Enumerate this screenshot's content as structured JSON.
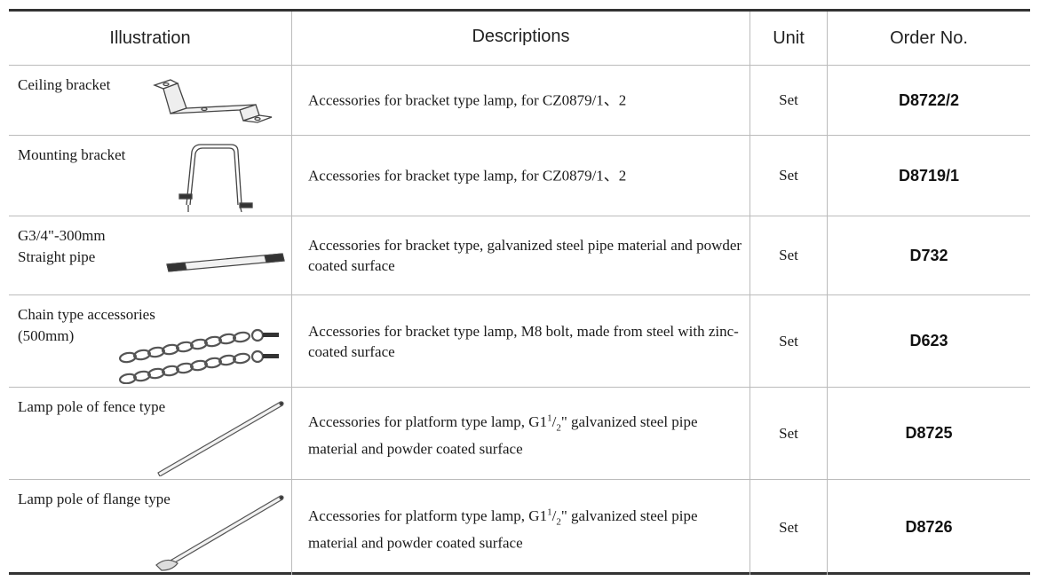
{
  "header": {
    "illustration": "Illustration",
    "descriptions": "Descriptions",
    "unit": "Unit",
    "order_no": "Order No."
  },
  "rows": [
    {
      "name": "Ceiling bracket",
      "desc": "Accessories for bracket type lamp, for CZ0879/1、2",
      "unit": "Set",
      "order": "D8722/2",
      "icon": "ceiling-bracket-icon"
    },
    {
      "name": "Mounting bracket",
      "desc": "Accessories for bracket type lamp, for CZ0879/1、2",
      "unit": "Set",
      "order": "D8719/1",
      "icon": "mounting-bracket-icon"
    },
    {
      "name": "G3/4\"-300mm\nStraight pipe",
      "desc": "Accessories for bracket type, galvanized steel pipe material and powder coated surface",
      "unit": "Set",
      "order": "D732",
      "icon": "straight-pipe-icon"
    },
    {
      "name": "Chain type accessories\n(500mm)",
      "desc": "Accessories for bracket type lamp, M8 bolt, made from steel with zinc-coated surface",
      "unit": "Set",
      "order": "D623",
      "icon": "chain-icon"
    },
    {
      "name": "Lamp pole of fence type",
      "desc_pre": "Accessories for platform type lamp, G1",
      "desc_sup": "1",
      "desc_slash": "/",
      "desc_sub": "2",
      "desc_post": "\" galvanized steel pipe material and powder coated surface",
      "unit": "Set",
      "order": "D8725",
      "icon": "fence-pole-icon"
    },
    {
      "name": "Lamp pole of flange type",
      "desc_pre": "Accessories for platform type lamp, G1",
      "desc_sup": "1",
      "desc_slash": "/",
      "desc_sub": "2",
      "desc_post": "\" galvanized steel pipe material and powder coated surface",
      "unit": "Set",
      "order": "D8726",
      "icon": "flange-pole-icon"
    }
  ]
}
